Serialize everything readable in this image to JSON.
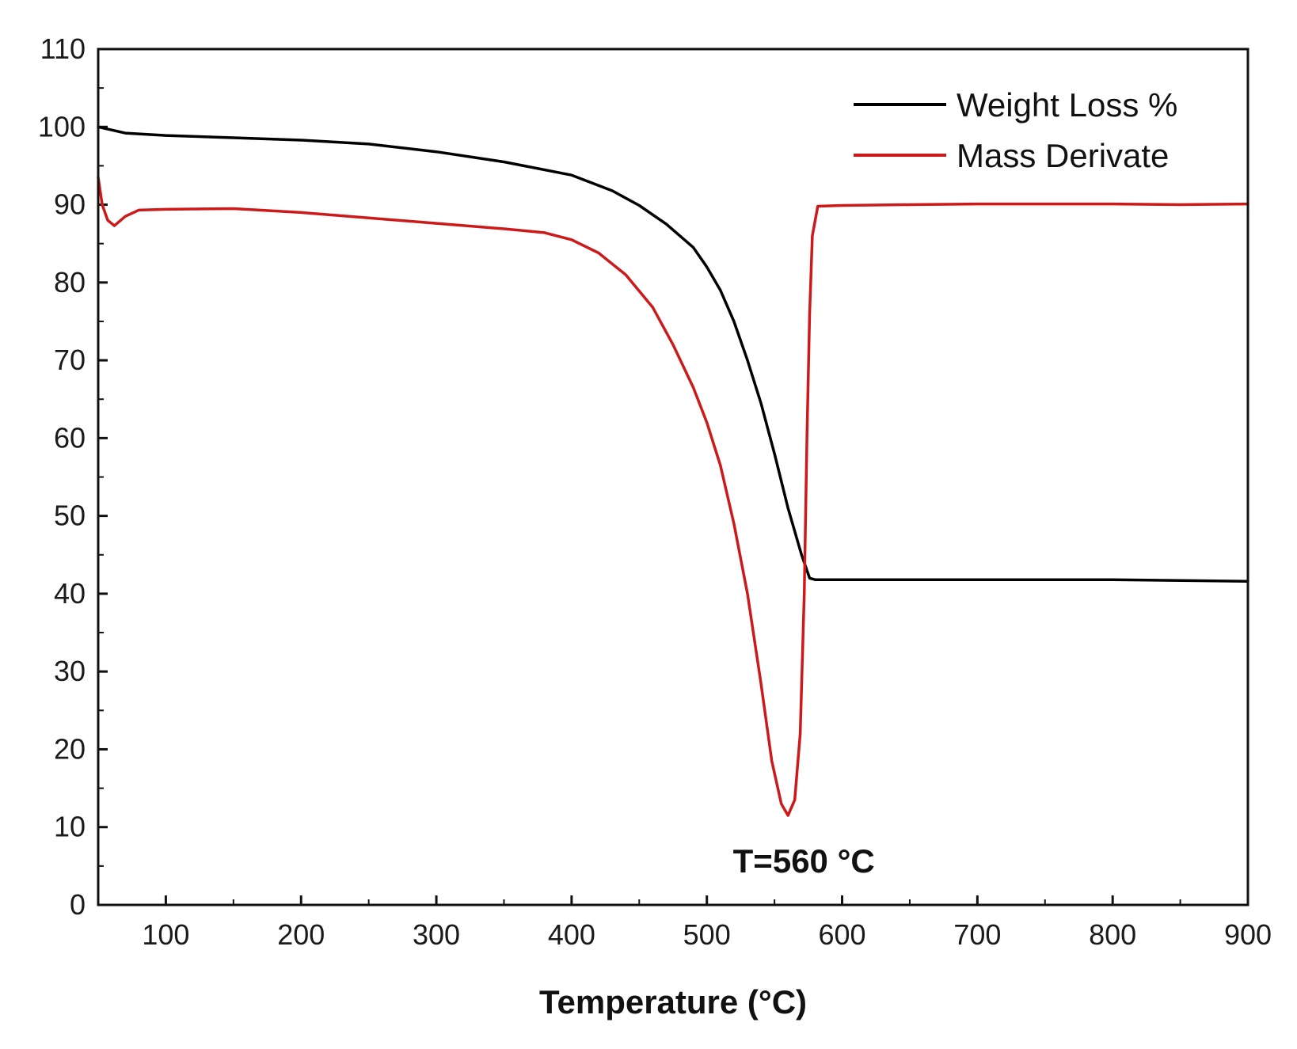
{
  "chart_data": {
    "type": "line",
    "title": "",
    "xlabel": "Temperature (°C)",
    "ylabel": "",
    "xlim": [
      50,
      900
    ],
    "ylim": [
      0,
      110
    ],
    "xticks": [
      100,
      200,
      300,
      400,
      500,
      600,
      700,
      800,
      900
    ],
    "yticks": [
      0,
      10,
      20,
      30,
      40,
      50,
      60,
      70,
      80,
      90,
      100,
      110
    ],
    "grid": false,
    "legend_position": "top-right",
    "series": [
      {
        "name": "Weight Loss %",
        "color": "#000000",
        "x": [
          50,
          60,
          70,
          100,
          150,
          200,
          250,
          300,
          350,
          400,
          430,
          450,
          470,
          490,
          500,
          510,
          520,
          530,
          540,
          550,
          560,
          570,
          576,
          580,
          650,
          700,
          800,
          900
        ],
        "y": [
          100,
          99.6,
          99.2,
          98.9,
          98.6,
          98.3,
          97.8,
          96.8,
          95.5,
          93.8,
          91.8,
          89.9,
          87.5,
          84.5,
          82,
          79,
          75,
          70,
          64.5,
          58,
          51,
          45,
          42,
          41.8,
          41.8,
          41.8,
          41.8,
          41.6
        ]
      },
      {
        "name": "Mass Derivate",
        "color": "#cc1a1a",
        "x": [
          50,
          53,
          57,
          62,
          70,
          80,
          100,
          150,
          200,
          250,
          300,
          350,
          380,
          400,
          420,
          440,
          460,
          475,
          490,
          500,
          510,
          520,
          530,
          540,
          548,
          555,
          560,
          565,
          569,
          572,
          574,
          576,
          578,
          582,
          600,
          650,
          700,
          750,
          800,
          850,
          900
        ],
        "y": [
          93.5,
          90,
          88,
          87.3,
          88.5,
          89.3,
          89.4,
          89.5,
          89,
          88.3,
          87.6,
          86.9,
          86.4,
          85.5,
          83.8,
          81,
          76.8,
          72,
          66.5,
          62,
          56.5,
          49,
          40,
          28.5,
          18.5,
          13,
          11.5,
          13.5,
          22,
          40,
          60,
          76,
          86,
          89.8,
          89.9,
          90,
          90.1,
          90.1,
          90.1,
          90,
          90.1
        ]
      }
    ],
    "annotations": [
      {
        "text": "T=560 °C",
        "x": 560,
        "y": 6
      }
    ]
  }
}
